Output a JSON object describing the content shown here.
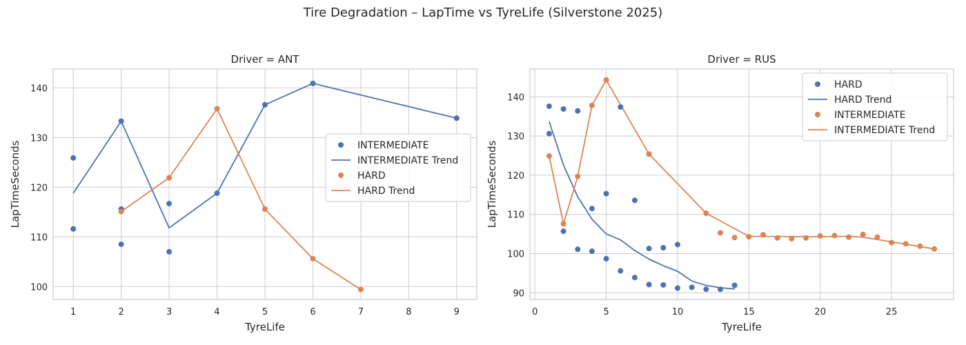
{
  "suptitle": "Tire Degradation – LapTime vs TyreLife (Silverstone 2025)",
  "colors": {
    "blue": "#4c72b0",
    "orange": "#dd8452"
  },
  "chart_data": [
    {
      "type": "scatter",
      "title": "Driver = ANT",
      "xlabel": "TyreLife",
      "ylabel": "LapTimeSeconds",
      "xlim": [
        0.58,
        9.42
      ],
      "ylim": [
        97.4,
        143.8
      ],
      "xticks": [
        1,
        2,
        3,
        4,
        5,
        6,
        7,
        8,
        9
      ],
      "yticks": [
        100,
        110,
        120,
        130,
        140
      ],
      "grid": true,
      "legend_position": "center-right",
      "legend": [
        "INTERMEDIATE",
        "INTERMEDIATE Trend",
        "HARD",
        "HARD Trend"
      ],
      "series": [
        {
          "name": "INTERMEDIATE",
          "color": "blue",
          "points": [
            [
              1,
              111.6
            ],
            [
              1,
              125.9
            ],
            [
              2,
              108.5
            ],
            [
              2,
              115.6
            ],
            [
              2,
              133.3
            ],
            [
              3,
              107.0
            ],
            [
              3,
              116.7
            ],
            [
              4,
              118.8
            ],
            [
              5,
              136.6
            ],
            [
              6,
              140.9
            ],
            [
              9,
              133.9
            ]
          ],
          "trend": [
            [
              1,
              118.8
            ],
            [
              2,
              133.3
            ],
            [
              3,
              111.8
            ],
            [
              4,
              118.8
            ],
            [
              5,
              136.6
            ],
            [
              6,
              140.9
            ],
            [
              9,
              133.9
            ]
          ]
        },
        {
          "name": "HARD",
          "color": "orange",
          "points": [
            [
              2,
              115.1
            ],
            [
              3,
              121.9
            ],
            [
              4,
              135.8
            ],
            [
              5,
              115.6
            ],
            [
              6,
              105.6
            ],
            [
              7,
              99.4
            ]
          ],
          "trend": [
            [
              2,
              115.1
            ],
            [
              3,
              121.9
            ],
            [
              4,
              135.8
            ],
            [
              5,
              115.6
            ],
            [
              6,
              105.6
            ],
            [
              7,
              99.4
            ]
          ]
        }
      ]
    },
    {
      "type": "scatter",
      "title": "Driver = RUS",
      "xlabel": "TyreLife",
      "ylabel": "LapTimeSeconds",
      "xlim": [
        -0.35,
        29.35
      ],
      "ylim": [
        88.3,
        147.1
      ],
      "xticks": [
        0,
        5,
        10,
        15,
        20,
        25
      ],
      "yticks": [
        90,
        100,
        110,
        120,
        130,
        140
      ],
      "grid": true,
      "legend_position": "upper-right",
      "legend": [
        "HARD",
        "HARD Trend",
        "INTERMEDIATE",
        "INTERMEDIATE Trend"
      ],
      "series": [
        {
          "name": "HARD",
          "color": "blue",
          "points": [
            [
              1,
              137.6
            ],
            [
              1,
              130.6
            ],
            [
              2,
              136.9
            ],
            [
              2,
              105.7
            ],
            [
              3,
              136.4
            ],
            [
              3,
              101.1
            ],
            [
              4,
              111.5
            ],
            [
              4,
              100.6
            ],
            [
              5,
              115.3
            ],
            [
              5,
              98.7
            ],
            [
              6,
              137.4
            ],
            [
              6,
              95.6
            ],
            [
              7,
              113.6
            ],
            [
              7,
              93.9
            ],
            [
              8,
              101.3
            ],
            [
              8,
              92.1
            ],
            [
              9,
              101.5
            ],
            [
              9,
              92.0
            ],
            [
              10,
              102.3
            ],
            [
              10,
              91.2
            ],
            [
              11,
              91.4
            ],
            [
              12,
              90.9
            ],
            [
              13,
              90.9
            ],
            [
              14,
              91.9
            ]
          ],
          "trend": [
            [
              1,
              133.7
            ],
            [
              2,
              122.6
            ],
            [
              3,
              114.5
            ],
            [
              4,
              108.8
            ],
            [
              5,
              105.0
            ],
            [
              6,
              103.5
            ],
            [
              7,
              100.8
            ],
            [
              8,
              98.6
            ],
            [
              9,
              96.9
            ],
            [
              10,
              95.5
            ],
            [
              11,
              93.0
            ],
            [
              12,
              91.9
            ],
            [
              13,
              91.3
            ],
            [
              14,
              91.0
            ]
          ]
        },
        {
          "name": "INTERMEDIATE",
          "color": "orange",
          "points": [
            [
              1,
              124.9
            ],
            [
              2,
              107.6
            ],
            [
              3,
              119.7
            ],
            [
              4,
              137.8
            ],
            [
              5,
              144.3
            ],
            [
              8,
              125.4
            ],
            [
              12,
              110.3
            ],
            [
              13,
              105.3
            ],
            [
              14,
              104.1
            ],
            [
              15,
              104.3
            ],
            [
              16,
              104.8
            ],
            [
              17,
              104.0
            ],
            [
              18,
              103.8
            ],
            [
              19,
              104.0
            ],
            [
              20,
              104.5
            ],
            [
              21,
              104.6
            ],
            [
              22,
              104.2
            ],
            [
              23,
              104.9
            ],
            [
              24,
              104.2
            ],
            [
              25,
              102.8
            ],
            [
              26,
              102.5
            ],
            [
              27,
              101.9
            ],
            [
              28,
              101.2
            ]
          ],
          "trend": [
            [
              1,
              124.9
            ],
            [
              2,
              107.6
            ],
            [
              3,
              119.7
            ],
            [
              4,
              137.8
            ],
            [
              5,
              144.3
            ],
            [
              8,
              125.4
            ],
            [
              12,
              110.3
            ],
            [
              15,
              104.4
            ],
            [
              20,
              104.3
            ],
            [
              22,
              104.4
            ],
            [
              23,
              104.2
            ],
            [
              25,
              103.0
            ],
            [
              26,
              102.4
            ],
            [
              27,
              101.8
            ],
            [
              28,
              101.2
            ]
          ]
        }
      ]
    }
  ]
}
